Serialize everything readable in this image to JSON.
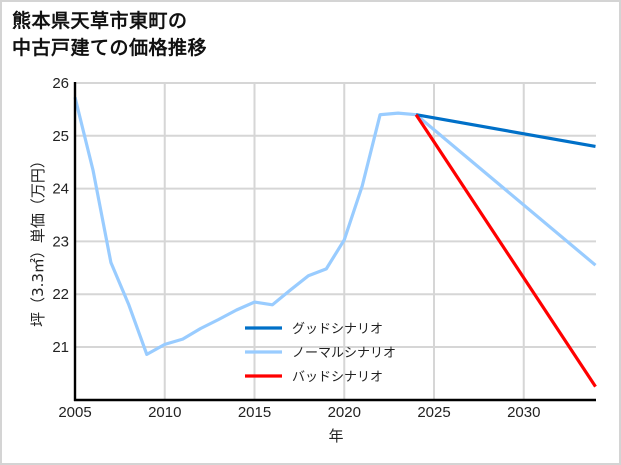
{
  "title_lines": [
    "熊本県天草市東町の",
    "中古戸建ての価格推移"
  ],
  "chart_data": {
    "type": "line",
    "title": "熊本県天草市東町の中古戸建ての価格推移",
    "xlabel": "年",
    "ylabel": "坪（3.3㎡）単価（万円）",
    "xlim": [
      2005,
      2034
    ],
    "ylim": [
      20,
      26
    ],
    "x_ticks": [
      2005,
      2010,
      2015,
      2020,
      2025,
      2030
    ],
    "y_ticks": [
      21,
      22,
      23,
      24,
      25,
      26
    ],
    "grid": true,
    "legend_position": "lower center (inside plot)",
    "series": [
      {
        "name": "グッドシナリオ",
        "color": "#0070c8",
        "x": [
          2024,
          2034
        ],
        "values": [
          25.4,
          24.8
        ]
      },
      {
        "name": "ノーマルシナリオ",
        "color": "#99ccff",
        "x": [
          2005,
          2006,
          2007,
          2008,
          2009,
          2010,
          2011,
          2012,
          2013,
          2014,
          2015,
          2016,
          2017,
          2018,
          2019,
          2020,
          2021,
          2022,
          2023,
          2024,
          2034
        ],
        "values": [
          25.73,
          24.35,
          22.6,
          21.8,
          20.86,
          21.05,
          21.15,
          21.35,
          21.52,
          21.7,
          21.85,
          21.8,
          22.08,
          22.35,
          22.48,
          23.03,
          24.05,
          25.4,
          25.43,
          25.4,
          22.55
        ]
      },
      {
        "name": "バッドシナリオ",
        "color": "#ff0000",
        "x": [
          2024,
          2034
        ],
        "values": [
          25.4,
          20.25
        ]
      }
    ]
  },
  "legend": [
    {
      "label": "グッドシナリオ",
      "color": "#0070c8"
    },
    {
      "label": "ノーマルシナリオ",
      "color": "#99ccff"
    },
    {
      "label": "バッドシナリオ",
      "color": "#ff0000"
    }
  ]
}
